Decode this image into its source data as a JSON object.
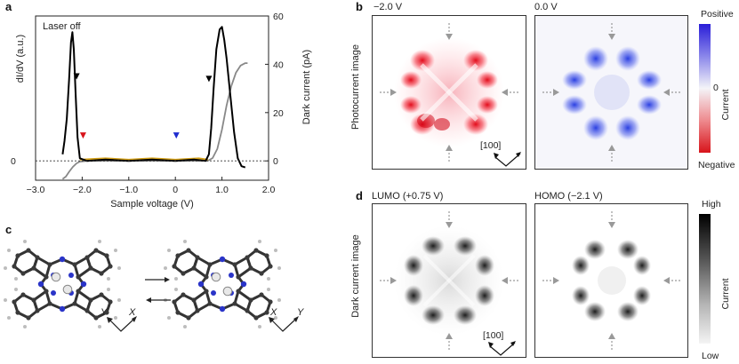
{
  "panels": {
    "a": {
      "letter": "a"
    },
    "b": {
      "letter": "b",
      "left_voltage": "−2.0 V",
      "right_voltage": "0.0 V",
      "row_label": "Photocurrent image",
      "colorbar_top": "Positive",
      "colorbar_bottom": "Negative",
      "colorbar_zero": "0",
      "colorbar_title": "Current",
      "direction": "[100]"
    },
    "c": {
      "letter": "c",
      "axis_x": "X",
      "axis_y": "Y"
    },
    "d": {
      "letter": "d",
      "left_title": "LUMO (+0.75 V)",
      "right_title": "HOMO (−2.1 V)",
      "row_label": "Dark current image",
      "colorbar_top": "High",
      "colorbar_bottom": "Low",
      "colorbar_title": "Current",
      "direction": "[100]"
    }
  },
  "chart_data": {
    "type": "line",
    "title": "Laser off",
    "xlabel": "Sample voltage (V)",
    "ylabel_left": "dI/dV (a.u.)",
    "ylabel_right": "Dark current (pA)",
    "xlim": [
      -3.0,
      2.0
    ],
    "ylim_right": [
      -8,
      60
    ],
    "x_ticks": [
      "−3.0",
      "−2.0",
      "−1.0",
      "0",
      "1.0",
      "2.0"
    ],
    "x_tick_values": [
      -3.0,
      -2.0,
      -1.0,
      0,
      1.0,
      2.0
    ],
    "y_right_ticks": [
      "0",
      "20",
      "40",
      "60"
    ],
    "y_right_tick_values": [
      0,
      20,
      40,
      60
    ],
    "y_left_ticks": [
      "0"
    ],
    "series": [
      {
        "name": "dI/dV",
        "color": "#000000",
        "x": [
          -2.42,
          -2.38,
          -2.33,
          -2.28,
          -2.24,
          -2.21,
          -2.18,
          -2.14,
          -2.1,
          -2.05,
          -1.9,
          -1.5,
          -1.0,
          -0.5,
          0.0,
          0.4,
          0.65,
          0.72,
          0.77,
          0.82,
          0.88,
          0.95,
          1.0,
          1.05,
          1.1,
          1.18,
          1.26,
          1.34,
          1.42,
          1.5
        ],
        "y": [
          0.05,
          0.15,
          0.32,
          0.62,
          0.9,
          0.98,
          0.85,
          0.5,
          0.18,
          0.02,
          0.0,
          0.01,
          0.0,
          0.01,
          0.0,
          0.01,
          0.0,
          0.05,
          0.25,
          0.55,
          0.85,
          1.0,
          1.02,
          0.92,
          0.78,
          0.5,
          0.22,
          0.02,
          -0.04,
          -0.05
        ]
      },
      {
        "name": "Dark current",
        "color": "#888888",
        "x": [
          -2.42,
          -2.35,
          -2.28,
          -2.2,
          -2.12,
          -2.05,
          -1.9,
          -1.5,
          -1.0,
          -0.5,
          0.0,
          0.5,
          0.7,
          0.8,
          0.9,
          1.0,
          1.1,
          1.2,
          1.3,
          1.4,
          1.5,
          1.55
        ],
        "y": [
          -7.5,
          -6.5,
          -4.5,
          -2.5,
          -1.0,
          -0.3,
          0.0,
          0.0,
          0.0,
          0.0,
          0.0,
          0.0,
          0.1,
          1.2,
          5.0,
          13.0,
          23.0,
          31.0,
          36.5,
          39.5,
          40.5,
          40.5
        ]
      },
      {
        "name": "Orange trace",
        "color": "#d4a017",
        "x": [
          -2.05,
          -1.5,
          -1.0,
          -0.5,
          0.0,
          0.5,
          0.7
        ],
        "y": [
          0.01,
          0.02,
          0.01,
          0.02,
          0.01,
          0.02,
          0.01
        ]
      }
    ],
    "markers": [
      {
        "label": "black-left",
        "x": -2.12,
        "color": "#000000",
        "level": 0.62
      },
      {
        "label": "red",
        "x": -1.98,
        "color": "#d8141b",
        "level": 0.17
      },
      {
        "label": "blue",
        "x": 0.02,
        "color": "#1f2ccf",
        "level": 0.17
      },
      {
        "label": "black-right",
        "x": 0.72,
        "color": "#000000",
        "level": 0.6
      }
    ]
  }
}
